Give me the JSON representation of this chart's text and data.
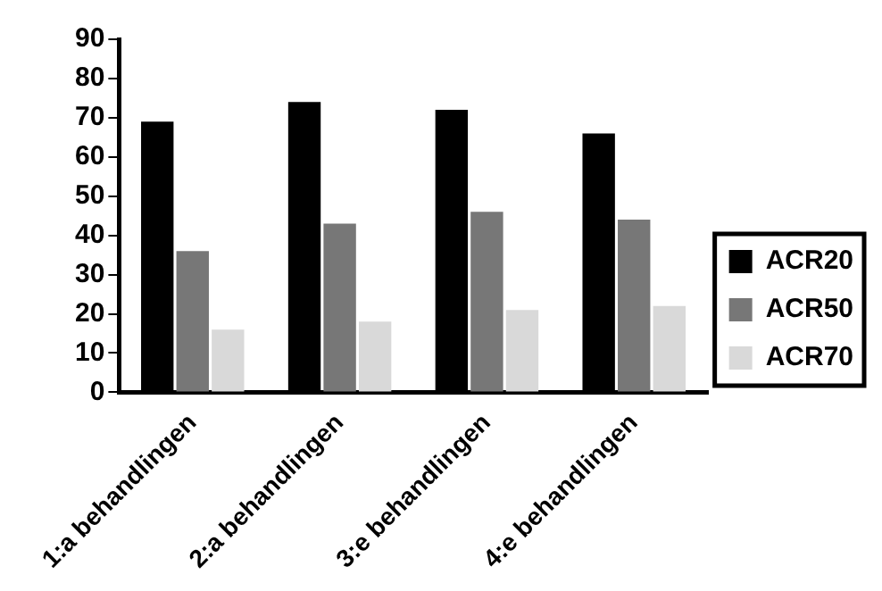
{
  "chart_data": {
    "type": "bar",
    "categories": [
      "1:a behandlingen",
      "2:a behandlingen",
      "3:e behandlingen",
      "4:e behandlingen"
    ],
    "series": [
      {
        "name": "ACR20",
        "color": "#000000",
        "values": [
          69,
          74,
          72,
          66
        ]
      },
      {
        "name": "ACR50",
        "color": "#777777",
        "values": [
          36,
          43,
          46,
          44
        ]
      },
      {
        "name": "ACR70",
        "color": "#d9d9d9",
        "values": [
          16,
          18,
          21,
          22
        ]
      }
    ],
    "ylim": [
      0,
      90
    ],
    "yticks": [
      0,
      10,
      20,
      30,
      40,
      50,
      60,
      70,
      80,
      90
    ],
    "grid": false,
    "legend": "right"
  }
}
